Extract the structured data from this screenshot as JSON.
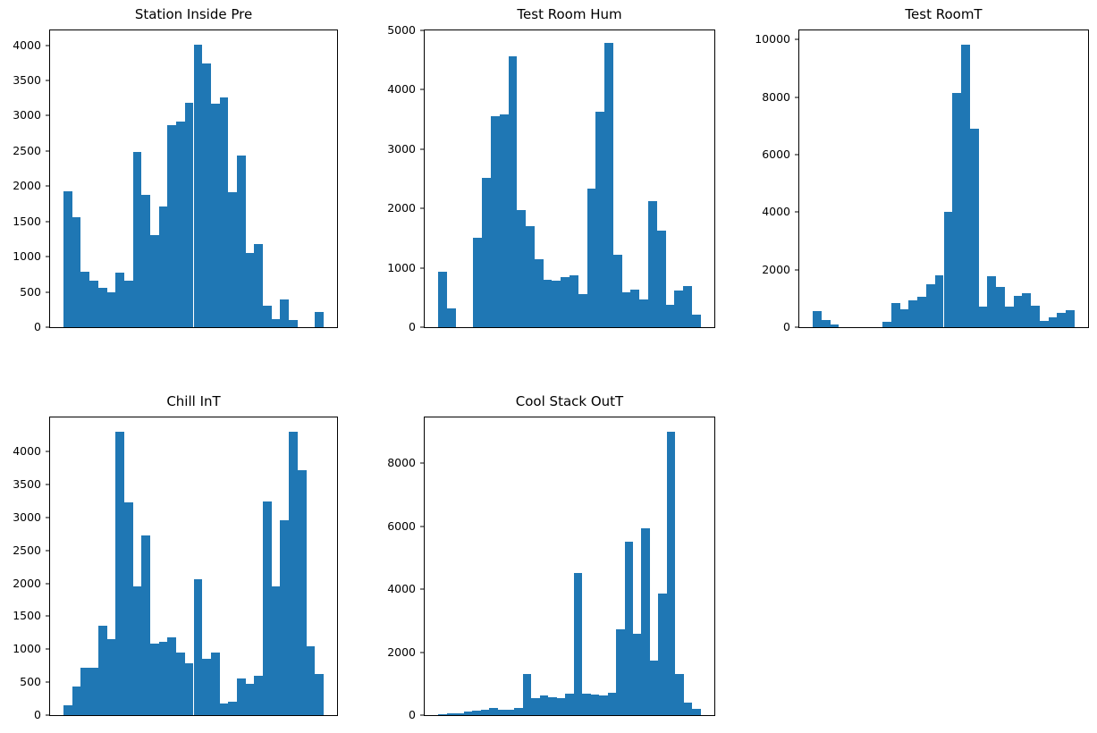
{
  "figure": {
    "background": "#ffffff",
    "bar_color": "#1f77b4",
    "axis_color": "#000000",
    "text_color": "#000000"
  },
  "chart_data": [
    {
      "type": "bar",
      "subtype": "histogram",
      "title": "Station Inside Pre",
      "row": 0,
      "col": 0,
      "ylim": [
        0,
        4210
      ],
      "yticks": [
        0,
        500,
        1000,
        1500,
        2000,
        2500,
        3000,
        3500,
        4000
      ],
      "xticks": "hidden",
      "grid": false,
      "legend": "none",
      "values": [
        1930,
        1560,
        790,
        660,
        560,
        490,
        770,
        660,
        2480,
        1880,
        1300,
        1710,
        2860,
        2920,
        3180,
        4010,
        3740,
        3170,
        3260,
        1910,
        2440,
        1050,
        1185,
        305,
        120,
        395,
        100,
        0,
        0,
        215
      ]
    },
    {
      "type": "bar",
      "subtype": "histogram",
      "title": "Test Room Hum",
      "row": 0,
      "col": 1,
      "ylim": [
        0,
        5000
      ],
      "yticks": [
        0,
        1000,
        2000,
        3000,
        4000,
        5000
      ],
      "xticks": "hidden",
      "grid": false,
      "legend": "none",
      "values": [
        930,
        320,
        0,
        0,
        1500,
        2520,
        3560,
        3590,
        4560,
        1980,
        1700,
        1150,
        800,
        780,
        840,
        880,
        550,
        2330,
        3630,
        4790,
        1220,
        590,
        630,
        470,
        2120,
        1630,
        370,
        620,
        700,
        210
      ]
    },
    {
      "type": "bar",
      "subtype": "histogram",
      "title": "Test RoomT",
      "row": 0,
      "col": 2,
      "ylim": [
        0,
        10320
      ],
      "yticks": [
        0,
        2000,
        4000,
        6000,
        8000,
        10000
      ],
      "xticks": "hidden",
      "grid": false,
      "legend": "none",
      "values": [
        570,
        260,
        80,
        0,
        0,
        0,
        0,
        0,
        200,
        840,
        620,
        930,
        1050,
        1500,
        1800,
        4000,
        8150,
        9830,
        6900,
        730,
        1780,
        1400,
        730,
        1080,
        1180,
        740,
        230,
        330,
        510,
        590
      ]
    },
    {
      "type": "bar",
      "subtype": "histogram",
      "title": "Chill InT",
      "row": 1,
      "col": 0,
      "ylim": [
        0,
        4520
      ],
      "yticks": [
        0,
        500,
        1000,
        1500,
        2000,
        2500,
        3000,
        3500,
        4000
      ],
      "xticks": "hidden",
      "grid": false,
      "legend": "none",
      "values": [
        150,
        435,
        725,
        725,
        1355,
        1160,
        4300,
        3230,
        1955,
        2725,
        1080,
        1120,
        1175,
        950,
        790,
        2070,
        850,
        950,
        170,
        200,
        555,
        480,
        595,
        3245,
        1950,
        2960,
        4305,
        3720,
        1050,
        620
      ]
    },
    {
      "type": "bar",
      "subtype": "histogram",
      "title": "Cool Stack OutT",
      "row": 1,
      "col": 1,
      "ylim": [
        0,
        9450
      ],
      "yticks": [
        0,
        2000,
        4000,
        6000,
        8000
      ],
      "xticks": "hidden",
      "grid": false,
      "legend": "none",
      "values": [
        30,
        65,
        65,
        100,
        130,
        170,
        240,
        160,
        160,
        220,
        1320,
        550,
        620,
        580,
        530,
        680,
        4500,
        680,
        650,
        630,
        700,
        2730,
        5500,
        2570,
        5930,
        1730,
        3850,
        9000,
        1320,
        390,
        200
      ]
    }
  ]
}
